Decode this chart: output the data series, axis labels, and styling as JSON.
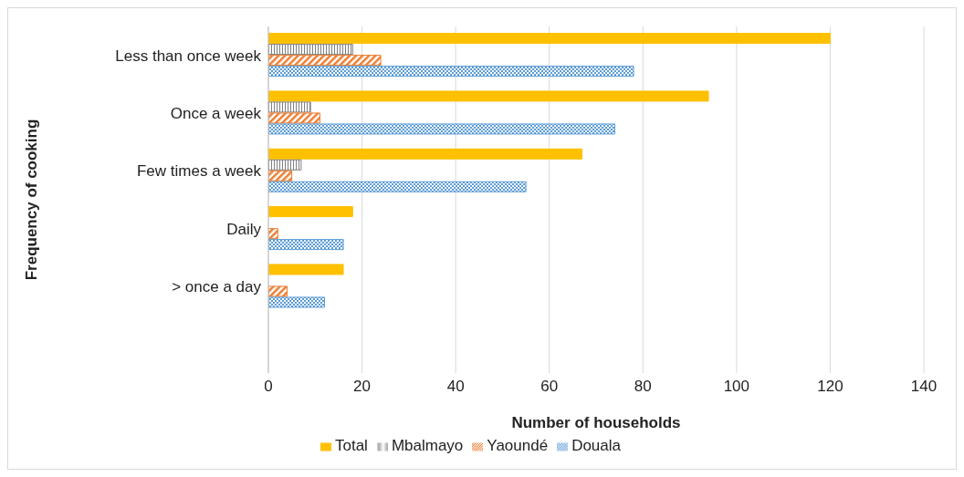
{
  "chart_data": {
    "type": "bar",
    "orientation": "horizontal",
    "xlabel": "Number of households",
    "ylabel": "Frequency of cooking",
    "categories": [
      "Less than once week",
      "Once a week",
      "Few times a week",
      "Daily",
      "> once a day",
      null
    ],
    "series": [
      {
        "name": "Total",
        "color": "#ffc000",
        "values": [
          120,
          94,
          67,
          18,
          16,
          null
        ]
      },
      {
        "name": "Mbalmayo",
        "color": "#7f7f7f",
        "values": [
          18,
          9,
          7,
          0,
          0,
          null
        ]
      },
      {
        "name": "Yaoundé",
        "color": "#ed7d31",
        "values": [
          24,
          11,
          5,
          2,
          4,
          null
        ]
      },
      {
        "name": "Douala",
        "color": "#5b9bd5",
        "values": [
          78,
          74,
          55,
          16,
          12,
          null
        ]
      }
    ],
    "xlim": [
      0,
      140
    ],
    "xticks": [
      0,
      20,
      40,
      60,
      80,
      100,
      120,
      140
    ],
    "grid": "x",
    "legend": "bottom"
  }
}
